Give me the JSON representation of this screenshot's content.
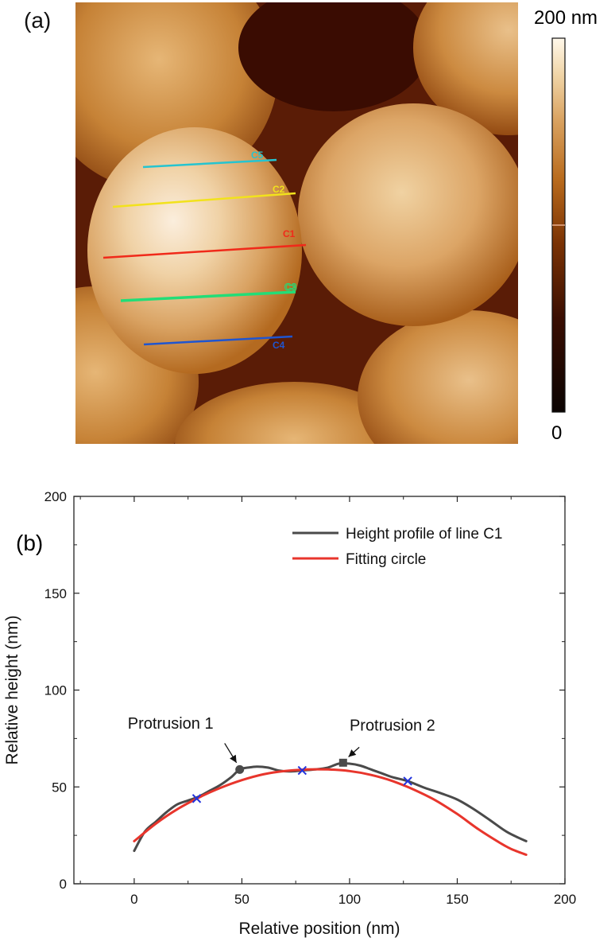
{
  "panel_a": {
    "label": "(a)",
    "colorbar": {
      "max_label": "200 nm",
      "min_label": "0",
      "colors": [
        "#0b0402",
        "#3a0e02",
        "#7a3204",
        "#b86a1c",
        "#d9a260",
        "#f0d4a6",
        "#fff8ea"
      ]
    },
    "lines": [
      {
        "name": "C5",
        "color": "#25c4d0"
      },
      {
        "name": "C2",
        "color": "#f2e21c"
      },
      {
        "name": "C1",
        "color": "#f02a1a"
      },
      {
        "name": "C3",
        "color": "#22dd77"
      },
      {
        "name": "C4",
        "color": "#1f55d0"
      }
    ]
  },
  "panel_b": {
    "label": "(b)",
    "annotations": [
      "Protrusion 1",
      "Protrusion 2"
    ]
  },
  "chart_data": {
    "type": "line",
    "title": "",
    "xlabel": "Relative position (nm)",
    "ylabel": "Relative height (nm)",
    "xlim": [
      -28,
      200
    ],
    "ylim": [
      0,
      200
    ],
    "xticks": [
      0,
      50,
      100,
      150,
      200
    ],
    "yticks": [
      0,
      50,
      100,
      150,
      200
    ],
    "legend_position": "top-right",
    "series": [
      {
        "name": "Height profile of line C1",
        "color": "#4a4a4a",
        "x": [
          0,
          5,
          10,
          15,
          20,
          25,
          30,
          35,
          40,
          45,
          49,
          53,
          57,
          62,
          67,
          72,
          78,
          84,
          90,
          95,
          100,
          105,
          110,
          115,
          120,
          127,
          135,
          143,
          150,
          157,
          165,
          172,
          177,
          182
        ],
        "y": [
          17,
          27,
          32,
          37,
          41,
          43,
          45,
          48,
          51,
          55,
          59,
          60,
          60.5,
          60,
          58.5,
          58,
          58.5,
          59,
          60,
          62,
          62,
          61,
          59,
          57,
          55,
          53,
          49.5,
          46.5,
          43.5,
          39,
          33,
          27.5,
          24.5,
          22
        ]
      },
      {
        "name": "Fitting circle",
        "color": "#e8352c",
        "x": [
          0,
          10,
          20,
          30,
          40,
          50,
          60,
          70,
          80,
          90,
          100,
          110,
          120,
          130,
          140,
          150,
          160,
          170,
          175,
          182
        ],
        "y": [
          22,
          31,
          38.5,
          44.5,
          49.5,
          53.5,
          56.5,
          58.2,
          59,
          59,
          58.2,
          56.2,
          53,
          48.5,
          43,
          36,
          28,
          21,
          18,
          15
        ]
      }
    ],
    "markers": [
      {
        "label": "Protrusion 1",
        "shape": "circle",
        "x": 49,
        "y": 59
      },
      {
        "label": "Protrusion 2",
        "shape": "square",
        "x": 97,
        "y": 62.5
      },
      {
        "label": "",
        "shape": "x",
        "x": 29,
        "y": 44
      },
      {
        "label": "",
        "shape": "x",
        "x": 78,
        "y": 58.5
      },
      {
        "label": "",
        "shape": "x",
        "x": 127,
        "y": 53
      }
    ]
  }
}
